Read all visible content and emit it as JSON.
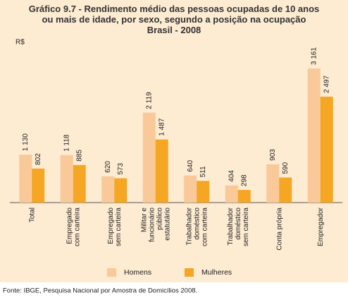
{
  "chart_data": {
    "type": "bar",
    "title": "Gráfico 9.7 - Rendimento médio das pessoas ocupadas de 10 anos\nou mais de idade, por sexo, segundo a posição na ocupação\nBrasil - 2008",
    "y_label": "R$",
    "categories": [
      "Total",
      "Empregado\ncom carteira",
      "Empregado\nsem carteira",
      "Militar e\nfuncionário\npúblico\nestatutário",
      "Trabalhador\ndoméstico\ncom carteira",
      "Trabalhador\ndoméstico\nsem carteira",
      "Conta própria",
      "Empregador"
    ],
    "series": [
      {
        "name": "Homens",
        "color": "#f9c99a",
        "values": [
          1130,
          1118,
          620,
          2119,
          640,
          404,
          903,
          3161
        ],
        "value_labels": [
          "1 130",
          "1 118",
          "620",
          "2 119",
          "640",
          "404",
          "903",
          "3 161"
        ]
      },
      {
        "name": "Mulheres",
        "color": "#f5a623",
        "values": [
          802,
          885,
          573,
          1487,
          511,
          298,
          590,
          2497
        ],
        "value_labels": [
          "802",
          "885",
          "573",
          "1 487",
          "511",
          "298",
          "590",
          "2 497"
        ]
      }
    ],
    "legend": "bottom",
    "source": "Fonte: IBGE, Pesquisa Nacional por Amostra de Domicílios 2008."
  }
}
